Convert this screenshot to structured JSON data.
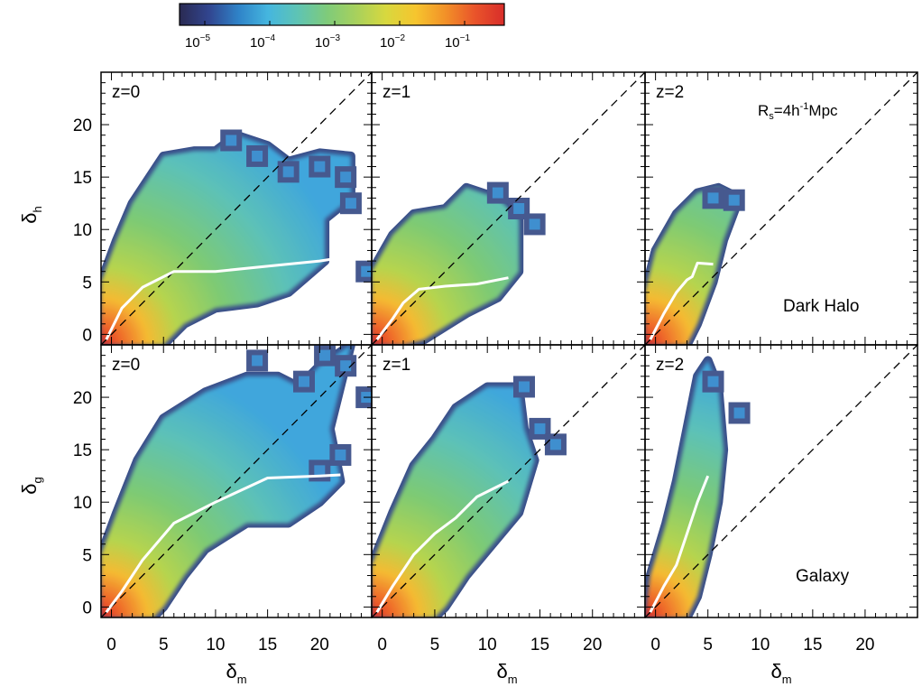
{
  "colorbar": {
    "tick_labels": [
      {
        "base": "10",
        "exp": "−5"
      },
      {
        "base": "10",
        "exp": "−4"
      },
      {
        "base": "10",
        "exp": "−3"
      },
      {
        "base": "10",
        "exp": "−2"
      },
      {
        "base": "10",
        "exp": "−1"
      }
    ],
    "colors": [
      "#2a2a52",
      "#31458f",
      "#2f83c8",
      "#45b6df",
      "#5ec4b4",
      "#7fcb7a",
      "#a8d15c",
      "#d8d83e",
      "#f6c52e",
      "#f29128",
      "#e9542a",
      "#d82d2a"
    ]
  },
  "annotation_smoothing": {
    "main": "R",
    "sub": "s",
    "rest": "=4h",
    "sup": "-1",
    "tail": "Mpc"
  },
  "row_labels": [
    "Dark Halo",
    "Galaxy"
  ],
  "ylabels": [
    {
      "main": "δ",
      "sub": "h"
    },
    {
      "main": "δ",
      "sub": "g"
    }
  ],
  "xlabel": {
    "main": "δ",
    "sub": "m"
  },
  "chart_data": [
    {
      "type": "heatmap",
      "panel": "z=0",
      "row": "Dark Halo",
      "xlim": [
        -1,
        25
      ],
      "ylim": [
        -1,
        25
      ],
      "xticks": [
        "0",
        "5",
        "10",
        "15",
        "20"
      ],
      "yticks": [
        "0",
        "5",
        "10",
        "15",
        "20"
      ],
      "mean_relation": {
        "x": [
          -0.5,
          1,
          3,
          6,
          10,
          15,
          20,
          22
        ],
        "y": [
          -0.5,
          2.5,
          4.5,
          6,
          6,
          6.5,
          7,
          7.3
        ]
      },
      "identity_line": true
    },
    {
      "type": "heatmap",
      "panel": "z=1",
      "row": "Dark Halo",
      "xlim": [
        -1,
        25
      ],
      "ylim": [
        -1,
        25
      ],
      "xticks": [
        "0",
        "5",
        "10",
        "15",
        "20"
      ],
      "yticks": [],
      "mean_relation": {
        "x": [
          -0.5,
          1,
          2,
          3.5,
          6,
          9,
          12
        ],
        "y": [
          -0.5,
          1.5,
          3,
          4.3,
          4.6,
          4.8,
          5.4
        ]
      },
      "identity_line": true
    },
    {
      "type": "heatmap",
      "panel": "z=2",
      "row": "Dark Halo",
      "xlim": [
        -1,
        25
      ],
      "ylim": [
        -1,
        25
      ],
      "xticks": [
        "0",
        "5",
        "10",
        "15",
        "20"
      ],
      "yticks": [],
      "mean_relation": {
        "x": [
          -0.5,
          0.8,
          2,
          3,
          3.5,
          4,
          5.5
        ],
        "y": [
          -0.5,
          2,
          4,
          5.2,
          5.5,
          6.8,
          6.7
        ]
      },
      "identity_line": true
    },
    {
      "type": "heatmap",
      "panel": "z=0",
      "row": "Galaxy",
      "xlim": [
        -1,
        25
      ],
      "ylim": [
        -1,
        25
      ],
      "xticks": [
        "0",
        "5",
        "10",
        "15",
        "20"
      ],
      "yticks": [
        "0",
        "5",
        "10",
        "15",
        "20"
      ],
      "mean_relation": {
        "x": [
          -0.5,
          1,
          3,
          6,
          10,
          15,
          20,
          22
        ],
        "y": [
          -0.5,
          1.5,
          4.5,
          8,
          10,
          12.3,
          12.5,
          12.6
        ]
      },
      "identity_line": true
    },
    {
      "type": "heatmap",
      "panel": "z=1",
      "row": "Galaxy",
      "xlim": [
        -1,
        25
      ],
      "ylim": [
        -1,
        25
      ],
      "xticks": [
        "0",
        "5",
        "10",
        "15",
        "20"
      ],
      "yticks": [],
      "mean_relation": {
        "x": [
          -0.5,
          1,
          3,
          5,
          7,
          9,
          12
        ],
        "y": [
          -0.5,
          2,
          5,
          7,
          8.5,
          10.5,
          12
        ]
      },
      "identity_line": true
    },
    {
      "type": "heatmap",
      "panel": "z=2",
      "row": "Galaxy",
      "xlim": [
        -1,
        25
      ],
      "ylim": [
        -1,
        25
      ],
      "xticks": [
        "0",
        "5",
        "10",
        "15",
        "20"
      ],
      "yticks": [],
      "mean_relation": {
        "x": [
          -0.5,
          0.8,
          2,
          3,
          4,
          5
        ],
        "y": [
          -0.5,
          2,
          4,
          7,
          10,
          12.5
        ]
      },
      "identity_line": true
    }
  ]
}
